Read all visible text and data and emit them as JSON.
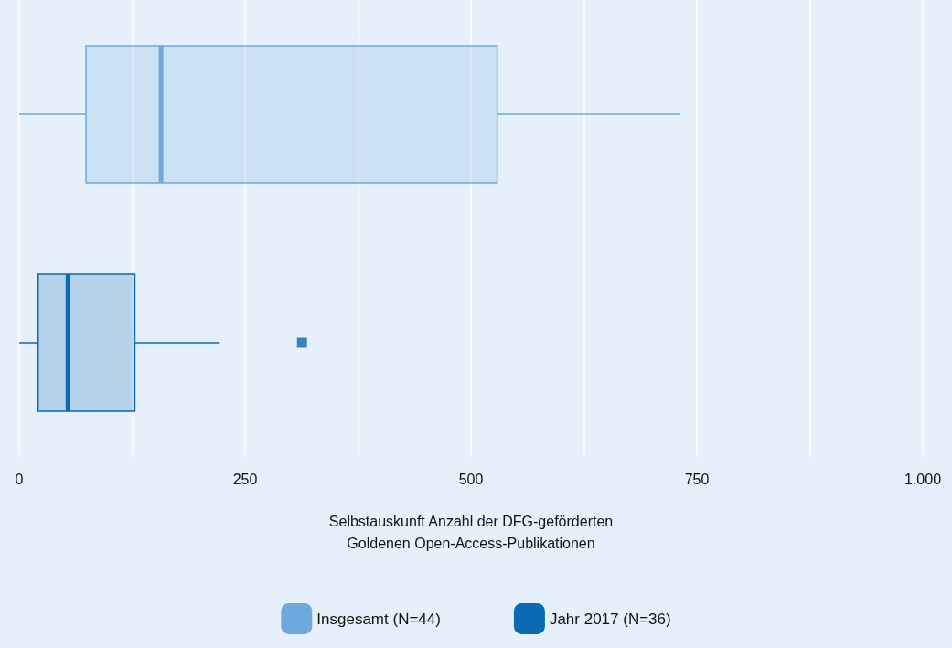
{
  "chart_data": {
    "type": "box",
    "orientation": "horizontal",
    "categories": [
      null,
      null
    ],
    "xlabel": "Selbstauskunft Anzahl der DFG-geförderten\nGoldenen Open-Access-Publikationen",
    "xlim": [
      0,
      1000
    ],
    "xticks": [
      0,
      {
        "value": 125,
        "label": null
      },
      250,
      {
        "value": 375,
        "label": null
      },
      500,
      {
        "value": 625,
        "label": null
      },
      750,
      {
        "value": 875,
        "label": null
      },
      {
        "value": 1000,
        "label": "1.000"
      }
    ],
    "grid": "x",
    "legend": "bottom",
    "series": [
      {
        "name": "Insgesamt (N=44)",
        "color": "#6fa8dc",
        "boxes": [
          {
            "low": 0,
            "q1": 74,
            "median": 157,
            "q3": 529,
            "high": 732
          },
          null
        ]
      },
      {
        "name": "Jahr 2017 (N=36)",
        "color": "#0a6ab4",
        "boxes": [
          null,
          {
            "low": 0,
            "q1": 21,
            "median": 54,
            "q3": 128,
            "high": 222,
            "outliers": [
              313
            ]
          }
        ]
      }
    ]
  }
}
